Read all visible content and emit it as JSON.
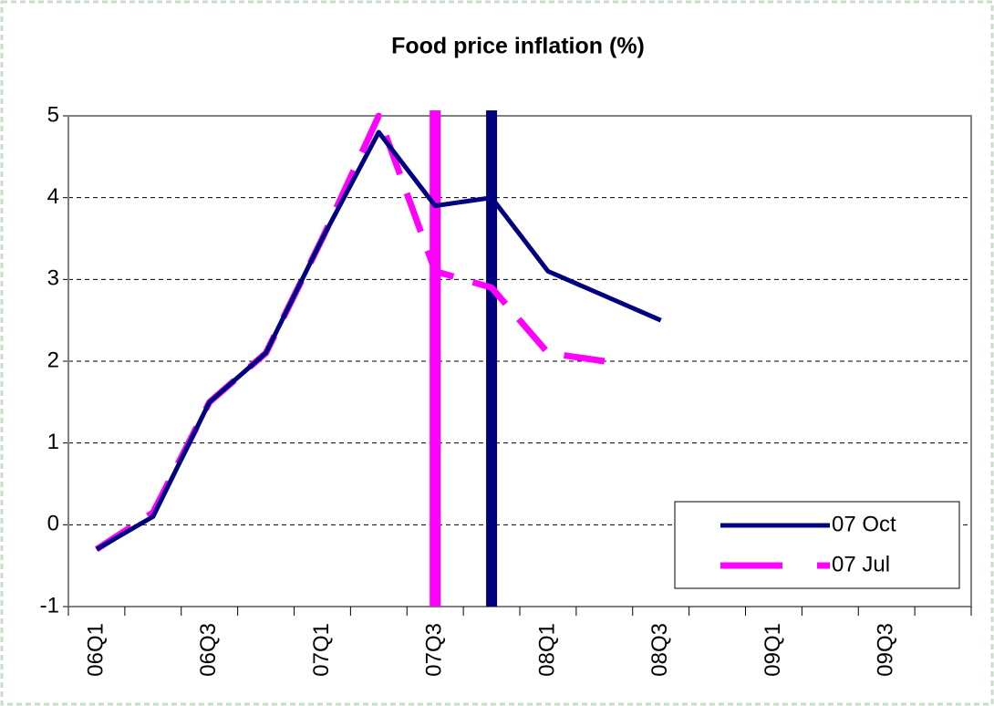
{
  "chart_data": {
    "type": "line",
    "title": "Food price inflation (%)",
    "categories": [
      "06Q1",
      null,
      "06Q3",
      null,
      "07Q1",
      null,
      "07Q3",
      null,
      "08Q1",
      null,
      "08Q3",
      null,
      "09Q1",
      null,
      "09Q3",
      null
    ],
    "series": [
      {
        "name": "07 Oct",
        "color": "#000080",
        "dashed": false,
        "values": [
          -0.3,
          0.1,
          1.5,
          2.1,
          3.5,
          4.8,
          3.9,
          4.0,
          3.1,
          2.8,
          2.5,
          null,
          null,
          null,
          null,
          null
        ]
      },
      {
        "name": "07 Jul",
        "color": "#ff00ff",
        "dashed": true,
        "values": [
          -0.3,
          0.15,
          1.5,
          2.1,
          3.5,
          5.0,
          3.1,
          2.9,
          2.1,
          2.0,
          null,
          null,
          null,
          null,
          null,
          null
        ]
      }
    ],
    "vlines": [
      {
        "index": 6,
        "color": "#ff00ff"
      },
      {
        "index": 7,
        "color": "#000080"
      }
    ],
    "ylim": [
      -1,
      5
    ],
    "yticks": [
      -1,
      0,
      1,
      2,
      3,
      4,
      5
    ],
    "grid": true,
    "legend": "bottom-right"
  }
}
